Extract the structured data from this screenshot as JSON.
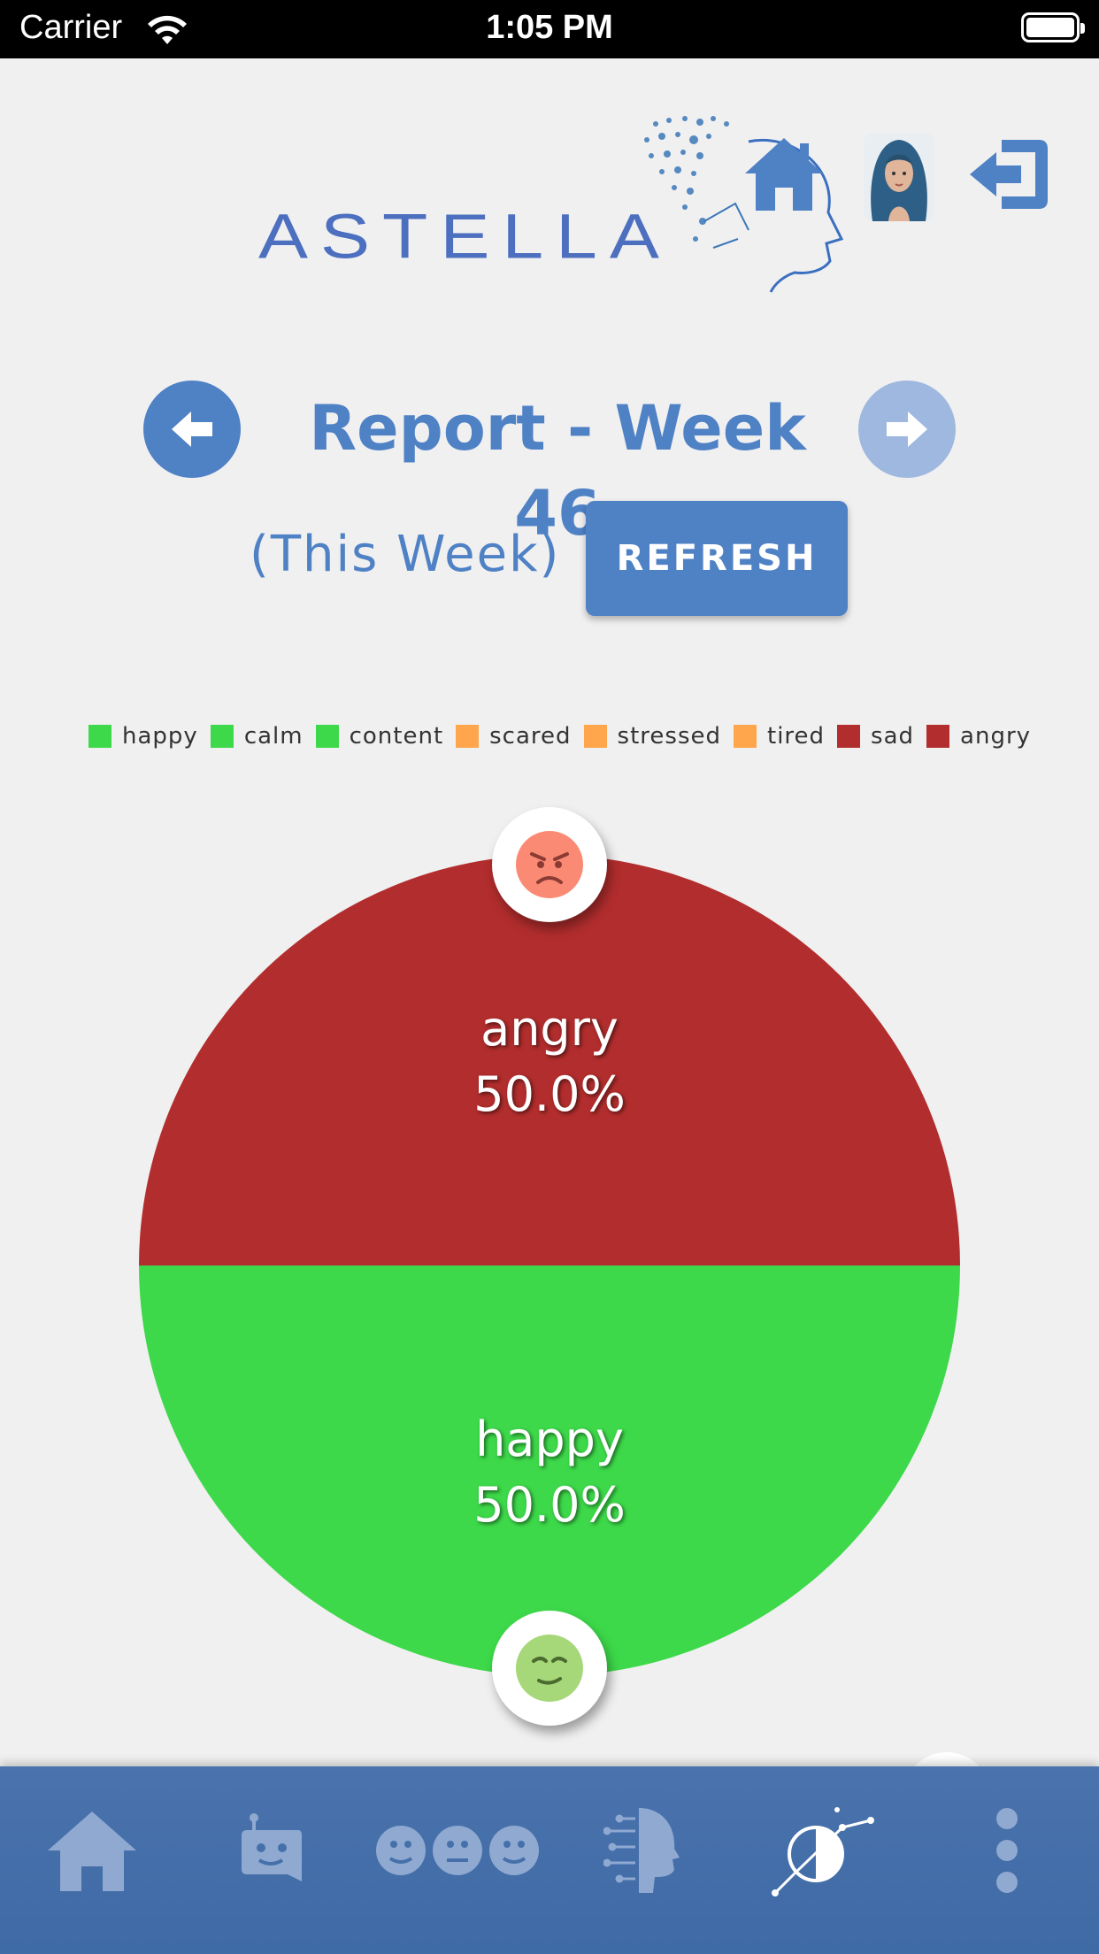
{
  "status_bar": {
    "carrier": "Carrier",
    "time": "1:05 PM"
  },
  "header": {
    "logo_text": "ASTELLA",
    "icons": [
      "home-icon",
      "avatar",
      "logout-icon"
    ]
  },
  "report": {
    "title": "Report - Week 46",
    "subtitle": "(This Week)",
    "refresh_label": "REFRESH"
  },
  "colors": {
    "primary": "#4f81c5",
    "primary_disabled": "#9fb8df",
    "positive": "#3dd94a",
    "neutral": "#ffa64d",
    "negative": "#b22d2d",
    "nav_bar": "#4570aa"
  },
  "legend": [
    {
      "label": "happy",
      "color": "#3dd94a"
    },
    {
      "label": "calm",
      "color": "#3dd94a"
    },
    {
      "label": "content",
      "color": "#3dd94a"
    },
    {
      "label": "scared",
      "color": "#ffa64d"
    },
    {
      "label": "stressed",
      "color": "#ffa64d"
    },
    {
      "label": "tired",
      "color": "#ffa64d"
    },
    {
      "label": "sad",
      "color": "#b22d2d"
    },
    {
      "label": "angry",
      "color": "#b22d2d"
    }
  ],
  "chart_data": {
    "type": "pie",
    "title": "",
    "categories": [
      "angry",
      "happy"
    ],
    "values": [
      50.0,
      50.0
    ],
    "colors": [
      "#b22d2d",
      "#3dd94a"
    ],
    "labels": [
      {
        "name": "angry",
        "percent": "50.0%"
      },
      {
        "name": "happy",
        "percent": "50.0%"
      }
    ]
  },
  "bottom_nav": {
    "items": [
      "home-icon",
      "chat-bot-icon",
      "moods-icon",
      "ai-head-icon",
      "report-chart-icon",
      "more-icon"
    ]
  }
}
